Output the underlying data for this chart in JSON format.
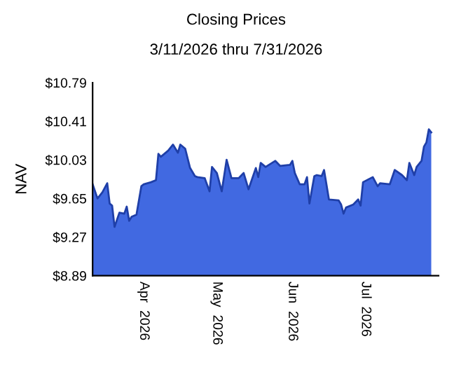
{
  "chart_data": {
    "type": "area",
    "title": "Closing Prices",
    "subtitle": "3/11/2026 thru 7/31/2026",
    "ylabel": "NAV",
    "x": [
      "2026-03-11",
      "2026-03-13",
      "2026-03-15",
      "2026-03-17",
      "2026-03-18",
      "2026-03-19",
      "2026-03-20",
      "2026-03-22",
      "2026-03-24",
      "2026-03-25",
      "2026-03-26",
      "2026-03-27",
      "2026-03-29",
      "2026-03-31",
      "2026-04-01",
      "2026-04-04",
      "2026-04-06",
      "2026-04-07",
      "2026-04-08",
      "2026-04-11",
      "2026-04-13",
      "2026-04-15",
      "2026-04-16",
      "2026-04-18",
      "2026-04-20",
      "2026-04-22",
      "2026-04-23",
      "2026-04-26",
      "2026-04-28",
      "2026-04-29",
      "2026-05-01",
      "2026-05-03",
      "2026-05-05",
      "2026-05-07",
      "2026-05-10",
      "2026-05-12",
      "2026-05-14",
      "2026-05-17",
      "2026-05-18",
      "2026-05-19",
      "2026-05-21",
      "2026-05-25",
      "2026-05-27",
      "2026-05-31",
      "2026-06-01",
      "2026-06-02",
      "2026-06-04",
      "2026-06-06",
      "2026-06-07",
      "2026-06-08",
      "2026-06-10",
      "2026-06-11",
      "2026-06-13",
      "2026-06-14",
      "2026-06-16",
      "2026-06-20",
      "2026-06-21",
      "2026-06-22",
      "2026-06-23",
      "2026-06-26",
      "2026-06-28",
      "2026-06-29",
      "2026-06-30",
      "2026-07-04",
      "2026-07-06",
      "2026-07-07",
      "2026-07-11",
      "2026-07-13",
      "2026-07-16",
      "2026-07-18",
      "2026-07-19",
      "2026-07-21",
      "2026-07-22",
      "2026-07-24",
      "2026-07-25",
      "2026-07-26",
      "2026-07-27",
      "2026-07-28"
    ],
    "series": [
      {
        "color": "#4169e1",
        "values": [
          9.79,
          9.65,
          9.71,
          9.8,
          9.6,
          9.58,
          9.37,
          9.51,
          9.5,
          9.57,
          9.43,
          9.47,
          9.49,
          9.77,
          9.79,
          9.81,
          9.83,
          10.09,
          10.06,
          10.12,
          10.18,
          10.1,
          10.18,
          10.14,
          9.95,
          9.87,
          9.86,
          9.85,
          9.72,
          9.96,
          9.9,
          9.72,
          10.03,
          9.85,
          9.85,
          9.9,
          9.74,
          9.95,
          9.86,
          10.0,
          9.96,
          10.02,
          9.97,
          9.98,
          10.02,
          9.9,
          9.79,
          9.79,
          9.86,
          9.6,
          9.87,
          9.88,
          9.87,
          9.93,
          9.64,
          9.63,
          9.59,
          9.5,
          9.56,
          9.59,
          9.64,
          9.58,
          9.81,
          9.86,
          9.77,
          9.8,
          9.79,
          9.93,
          9.88,
          9.83,
          10.0,
          9.88,
          9.96,
          10.02,
          10.16,
          10.2,
          10.33,
          10.3
        ]
      }
    ],
    "xlim": [
      "2026-03-11",
      "2026-07-31"
    ],
    "xticks": [
      {
        "value": "2026-04-01",
        "label": "Apr  2026"
      },
      {
        "value": "2026-05-01",
        "label": "May  2026"
      },
      {
        "value": "2026-06-01",
        "label": "Jun  2026"
      },
      {
        "value": "2026-07-01",
        "label": "Jul  2026"
      }
    ],
    "ylim": [
      8.89,
      10.79
    ],
    "yticks": [
      {
        "value": 8.89,
        "label": "$8.89"
      },
      {
        "value": 9.27,
        "label": "$9.27"
      },
      {
        "value": 9.65,
        "label": "$9.65"
      },
      {
        "value": 10.03,
        "label": "$10.03"
      },
      {
        "value": 10.41,
        "label": "$10.41"
      },
      {
        "value": 10.79,
        "label": "$10.79"
      }
    ],
    "grid": false,
    "legend": false
  }
}
